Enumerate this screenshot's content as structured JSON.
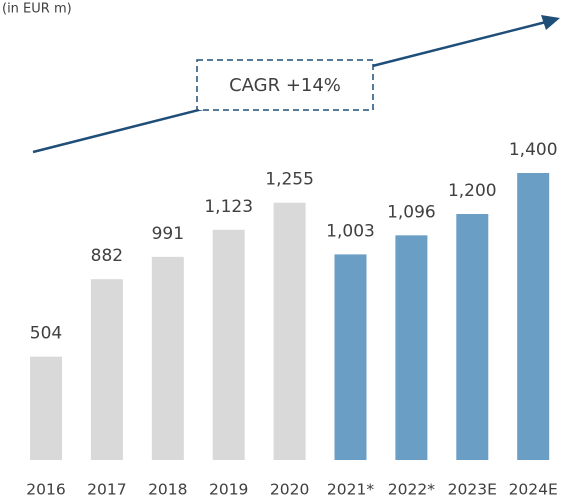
{
  "chart_data": {
    "type": "bar",
    "subtitle": "(in EUR m)",
    "annotation": "CAGR +14%",
    "categories": [
      "2016",
      "2017",
      "2018",
      "2019",
      "2020",
      "2021*",
      "2022*",
      "2023E",
      "2024E"
    ],
    "values": [
      504,
      882,
      991,
      1123,
      1255,
      1003,
      1096,
      1200,
      1400
    ],
    "value_labels": [
      "504",
      "882",
      "991",
      "1,123",
      "1,255",
      "1,003",
      "1,096",
      "1,200",
      "1,400"
    ],
    "colors": [
      "#d9d9d9",
      "#d9d9d9",
      "#d9d9d9",
      "#d9d9d9",
      "#d9d9d9",
      "#6a9ec5",
      "#6a9ec5",
      "#6a9ec5",
      "#6a9ec5"
    ]
  }
}
